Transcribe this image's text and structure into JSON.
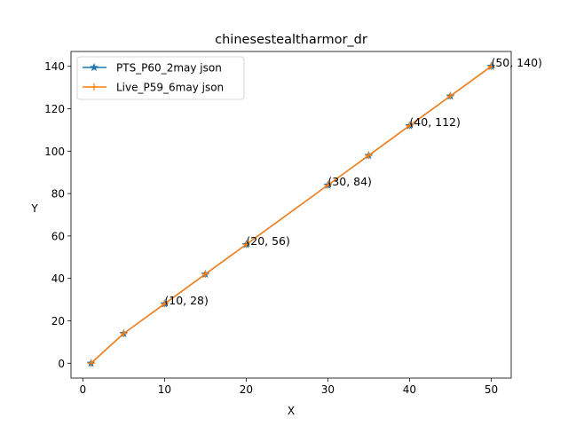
{
  "chart_data": {
    "type": "line",
    "title": "chinesestealtharmor_dr",
    "xlabel": "X",
    "ylabel": "Y",
    "xlim": [
      -1.45,
      52.45
    ],
    "ylim": [
      -7,
      147
    ],
    "xticks": [
      0,
      10,
      20,
      30,
      40,
      50
    ],
    "yticks": [
      0,
      20,
      40,
      60,
      80,
      100,
      120,
      140
    ],
    "x": [
      1,
      5,
      10,
      15,
      20,
      30,
      35,
      40,
      45,
      50
    ],
    "series": [
      {
        "name": "PTS_P60_2may json",
        "color": "#1f77b4",
        "marker": "star",
        "values": [
          0,
          14,
          28,
          42,
          56,
          84,
          98,
          112,
          126,
          140
        ]
      },
      {
        "name": "Live_P59_6may json",
        "color": "#ff7f0e",
        "marker": "plus",
        "values": [
          0,
          14,
          28,
          42,
          56,
          84,
          98,
          112,
          126,
          140
        ]
      }
    ],
    "annotations": [
      {
        "x": 10,
        "y": 28,
        "text": "(10, 28)"
      },
      {
        "x": 20,
        "y": 56,
        "text": "(20, 56)"
      },
      {
        "x": 30,
        "y": 84,
        "text": "(30, 84)"
      },
      {
        "x": 40,
        "y": 112,
        "text": "(40, 112)"
      },
      {
        "x": 50,
        "y": 140,
        "text": "(50, 140)"
      }
    ],
    "legend_position": "upper-left",
    "grid": false
  }
}
